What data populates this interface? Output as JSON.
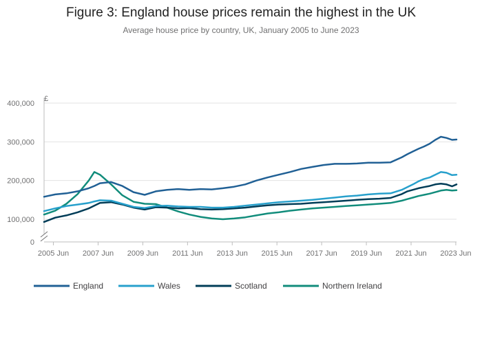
{
  "chart_data": {
    "type": "line",
    "title": "Figure 3: England house prices remain the highest in the UK",
    "subtitle": "Average house price by country, UK, January 2005 to June 2023",
    "ylabel": "£",
    "xlabel": "",
    "xlim": [
      2005.0,
      2023.45
    ],
    "ylim": [
      0,
      400000
    ],
    "y_axis_break": [
      0,
      70000
    ],
    "y_ticks": [
      0,
      100000,
      200000,
      300000,
      400000
    ],
    "y_tick_labels": [
      "0",
      "100,000",
      "200,000",
      "300,000",
      "400,000"
    ],
    "x_ticks": [
      2005.4167,
      2007.4167,
      2009.4167,
      2011.4167,
      2013.4167,
      2015.4167,
      2017.4167,
      2019.4167,
      2021.4167,
      2023.4167
    ],
    "x_tick_labels": [
      "2005 Jun",
      "2007 Jun",
      "2009 Jun",
      "2011 Jun",
      "2013 Jun",
      "2015 Jun",
      "2017 Jun",
      "2019 Jun",
      "2021 Jun",
      "2023 Jun"
    ],
    "grid": "horizontal",
    "legend_position": "bottom-left",
    "x": [
      2005.0,
      2005.5,
      2006.0,
      2006.5,
      2007.0,
      2007.25,
      2007.5,
      2008.0,
      2008.5,
      2009.0,
      2009.5,
      2010.0,
      2010.5,
      2011.0,
      2011.5,
      2012.0,
      2012.5,
      2013.0,
      2013.5,
      2014.0,
      2014.5,
      2015.0,
      2015.5,
      2016.0,
      2016.5,
      2017.0,
      2017.5,
      2018.0,
      2018.5,
      2019.0,
      2019.5,
      2020.0,
      2020.5,
      2021.0,
      2021.25,
      2021.5,
      2021.75,
      2022.0,
      2022.25,
      2022.5,
      2022.75,
      2023.0,
      2023.25,
      2023.45
    ],
    "series": [
      {
        "name": "England",
        "color": "#206095",
        "values": [
          158000,
          164000,
          167000,
          172000,
          180000,
          186000,
          193000,
          196000,
          186000,
          170000,
          163000,
          172000,
          176000,
          178000,
          176000,
          178000,
          177000,
          180000,
          184000,
          190000,
          200000,
          208000,
          215000,
          222000,
          230000,
          235000,
          240000,
          243000,
          243000,
          244000,
          246000,
          246000,
          247000,
          260000,
          268000,
          275000,
          282000,
          288000,
          295000,
          305000,
          313000,
          310000,
          305000,
          306000
        ]
      },
      {
        "name": "Wales",
        "color": "#27a0cc",
        "values": [
          121000,
          128000,
          134000,
          138000,
          142000,
          146000,
          149000,
          148000,
          140000,
          132000,
          129000,
          134000,
          135000,
          133000,
          132000,
          132000,
          130000,
          130000,
          132000,
          135000,
          138000,
          141000,
          144000,
          146000,
          148000,
          150000,
          153000,
          156000,
          159000,
          161000,
          164000,
          166000,
          167000,
          176000,
          183000,
          190000,
          198000,
          204000,
          208000,
          215000,
          222000,
          220000,
          214000,
          215000
        ]
      },
      {
        "name": "Scotland",
        "color": "#003c57",
        "values": [
          93000,
          104000,
          110000,
          118000,
          128000,
          135000,
          142000,
          144000,
          138000,
          130000,
          125000,
          131000,
          130000,
          128000,
          129000,
          126000,
          125000,
          126000,
          128000,
          130000,
          133000,
          136000,
          138000,
          139000,
          140000,
          142000,
          144000,
          146000,
          148000,
          150000,
          152000,
          153000,
          155000,
          165000,
          172000,
          176000,
          180000,
          183000,
          186000,
          190000,
          192000,
          190000,
          185000,
          190000
        ]
      },
      {
        "name": "Northern Ireland",
        "color": "#118c7b",
        "values": [
          112000,
          122000,
          140000,
          165000,
          200000,
          222000,
          215000,
          190000,
          162000,
          145000,
          140000,
          139000,
          130000,
          120000,
          112000,
          106000,
          102000,
          100000,
          102000,
          105000,
          110000,
          115000,
          118000,
          122000,
          125000,
          128000,
          130000,
          132000,
          134000,
          136000,
          138000,
          140000,
          142000,
          148000,
          152000,
          156000,
          160000,
          163000,
          166000,
          170000,
          174000,
          176000,
          174000,
          175000
        ]
      }
    ]
  }
}
